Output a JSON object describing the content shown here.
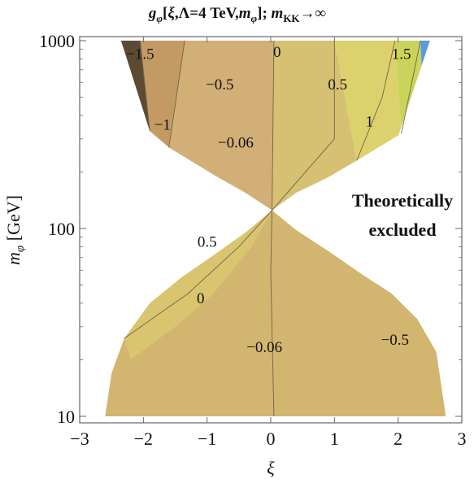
{
  "chart_data": {
    "type": "contour",
    "title": "gφ[ξ,Λ=4 TeV,mφ]; mKK→∞",
    "title_parts": {
      "g": "g",
      "phi_sub": "φ",
      "args_open": "[",
      "xi": "ξ",
      "lambda": ",Λ=4 TeV,",
      "m": "m",
      "phi_sub2": "φ",
      "args_close": "]; ",
      "m2": "m",
      "kk_sub": "KK",
      "limit": "→∞"
    },
    "xlabel": "ξ",
    "ylabel_parts": {
      "m": "m",
      "phi_sub": "φ",
      "unit": " [GeV]"
    },
    "xlim": [
      -3,
      3
    ],
    "ylim": [
      10,
      1000
    ],
    "y_scale": "log",
    "x_ticks": [
      "−3",
      "−2",
      "−1",
      "0",
      "1",
      "2",
      "3"
    ],
    "y_ticks": [
      {
        "value": 10,
        "label": "10"
      },
      {
        "value": 100,
        "label": "100"
      },
      {
        "value": 1000,
        "label": "1000"
      }
    ],
    "pinch_point": {
      "xi": 0.02,
      "m": 125
    },
    "upper_boundary": [
      {
        "xi": -2.35,
        "m": 1000
      },
      {
        "xi": -1.9,
        "m": 330
      },
      {
        "xi": -1.6,
        "m": 270
      },
      {
        "xi": -1.2,
        "m": 220
      },
      {
        "xi": -0.8,
        "m": 185
      },
      {
        "xi": -0.4,
        "m": 155
      },
      {
        "xi": 0.02,
        "m": 125
      },
      {
        "xi": 0.4,
        "m": 155
      },
      {
        "xi": 0.8,
        "m": 180
      },
      {
        "xi": 1.2,
        "m": 210
      },
      {
        "xi": 1.6,
        "m": 250
      },
      {
        "xi": 2.0,
        "m": 310
      },
      {
        "xi": 2.5,
        "m": 1000
      }
    ],
    "lower_boundary": [
      {
        "xi": -2.6,
        "m": 10
      },
      {
        "xi": -2.5,
        "m": 17
      },
      {
        "xi": -2.3,
        "m": 26
      },
      {
        "xi": -1.9,
        "m": 40
      },
      {
        "xi": -1.4,
        "m": 55
      },
      {
        "xi": -0.9,
        "m": 72
      },
      {
        "xi": -0.4,
        "m": 95
      },
      {
        "xi": 0.02,
        "m": 125
      },
      {
        "xi": 0.4,
        "m": 98
      },
      {
        "xi": 0.9,
        "m": 76
      },
      {
        "xi": 1.4,
        "m": 58
      },
      {
        "xi": 1.9,
        "m": 45
      },
      {
        "xi": 2.3,
        "m": 33
      },
      {
        "xi": 2.6,
        "m": 22
      },
      {
        "xi": 2.75,
        "m": 10
      }
    ],
    "regions": [
      {
        "name": "",
        "color": "#5c4a33",
        "upper": [
          {
            "xi": -2.6,
            "m": 1000
          },
          {
            "xi": -2.05,
            "m": 1000
          },
          {
            "xi": -1.9,
            "m": 330
          },
          {
            "xi": -2.4,
            "m": 520
          }
        ]
      },
      {
        "name": "",
        "color": "#c49a64",
        "upper": [
          {
            "xi": -2.05,
            "m": 1000
          },
          {
            "xi": -1.35,
            "m": 1000
          },
          {
            "xi": -1.6,
            "m": 270
          },
          {
            "xi": -1.9,
            "m": 330
          }
        ]
      },
      {
        "name": "",
        "color": "#d2af76",
        "upper": [
          {
            "xi": -1.35,
            "m": 1000
          },
          {
            "xi": 0.05,
            "m": 1000
          },
          {
            "xi": 0.02,
            "m": 125
          },
          {
            "xi": -1.6,
            "m": 270
          }
        ]
      },
      {
        "name": "",
        "color": "#d6c072",
        "upper": [
          {
            "xi": 0.05,
            "m": 1000
          },
          {
            "xi": 1.0,
            "m": 1000
          },
          {
            "xi": 1.35,
            "m": 230
          },
          {
            "xi": 0.02,
            "m": 125
          }
        ]
      },
      {
        "name": "",
        "color": "#ddd16d",
        "upper": [
          {
            "xi": 1.0,
            "m": 1000
          },
          {
            "xi": 1.95,
            "m": 1000
          },
          {
            "xi": 2.05,
            "m": 320
          },
          {
            "xi": 1.35,
            "m": 230
          }
        ]
      },
      {
        "name": "",
        "color": "#cbd45a",
        "upper": [
          {
            "xi": 1.95,
            "m": 1000
          },
          {
            "xi": 2.35,
            "m": 1000
          },
          {
            "xi": 2.4,
            "m": 420
          },
          {
            "xi": 2.05,
            "m": 320
          }
        ]
      },
      {
        "name": "",
        "color": "#5b9bdd",
        "upper": [
          {
            "xi": 2.35,
            "m": 1000
          },
          {
            "xi": 2.55,
            "m": 1000
          },
          {
            "xi": 2.4,
            "m": 420
          }
        ]
      }
    ],
    "contour_labels": [
      {
        "text": "−1.5",
        "xi": -2.05,
        "m": 800
      },
      {
        "text": "−0.5",
        "xi": -0.8,
        "m": 550
      },
      {
        "text": "0",
        "xi": 0.1,
        "m": 820
      },
      {
        "text": "1.5",
        "xi": 2.05,
        "m": 800
      },
      {
        "text": "0.5",
        "xi": 1.05,
        "m": 550
      },
      {
        "text": "−1",
        "xi": -1.7,
        "m": 335
      },
      {
        "text": "1",
        "xi": 1.55,
        "m": 350
      },
      {
        "text": "−0.06",
        "xi": -0.55,
        "m": 270
      },
      {
        "text": "0.5",
        "xi": -1.0,
        "m": 80
      },
      {
        "text": "0",
        "xi": -1.1,
        "m": 40
      },
      {
        "text": "−0.06",
        "xi": -0.1,
        "m": 22
      },
      {
        "text": "−0.5",
        "xi": 1.95,
        "m": 24
      }
    ],
    "annotations": [
      "Theoretically",
      "excluded"
    ]
  }
}
